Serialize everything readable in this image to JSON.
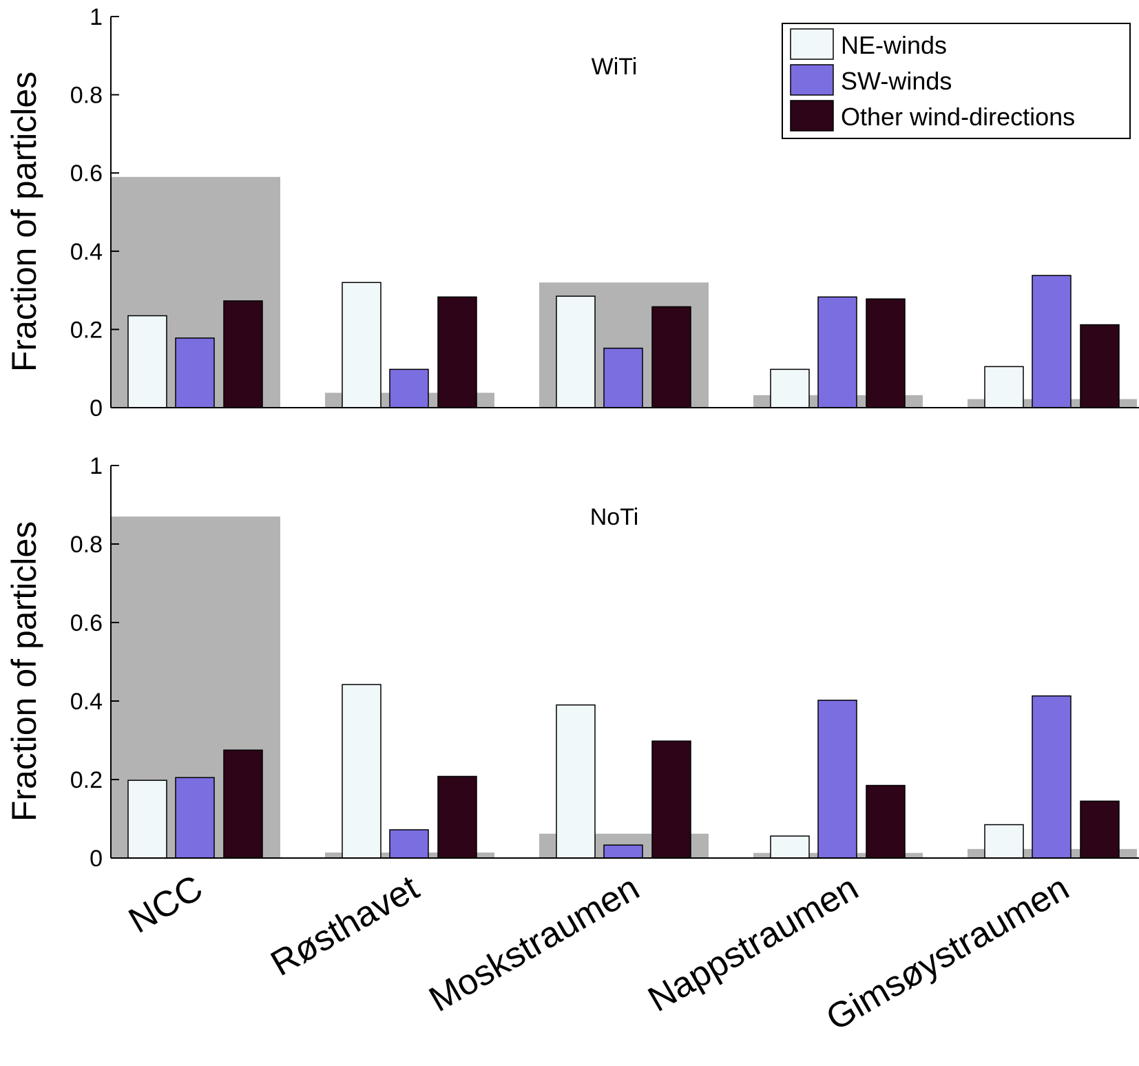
{
  "chart_data": [
    {
      "type": "bar",
      "title": "WiTi",
      "ylabel": "Fraction of particles",
      "xlabel": "",
      "ylim": [
        0,
        1
      ],
      "yticks": [
        "0",
        "0.2",
        "0.4",
        "0.6",
        "0.8",
        "1"
      ],
      "categories": [
        "NCC",
        "Røsthavet",
        "Moskstraumen",
        "Nappstraumen",
        "Gimsøystraumen"
      ],
      "background_values": [
        0.59,
        0.038,
        0.32,
        0.032,
        0.022
      ],
      "series": [
        {
          "name": "NE-winds",
          "values": [
            0.235,
            0.32,
            0.285,
            0.098,
            0.105
          ]
        },
        {
          "name": "SW-winds",
          "values": [
            0.178,
            0.098,
            0.152,
            0.283,
            0.338
          ]
        },
        {
          "name": "Other wind-directions",
          "values": [
            0.273,
            0.283,
            0.258,
            0.278,
            0.212
          ]
        }
      ]
    },
    {
      "type": "bar",
      "title": "NoTi",
      "ylabel": "Fraction of particles",
      "xlabel": "",
      "ylim": [
        0,
        1
      ],
      "yticks": [
        "0",
        "0.2",
        "0.4",
        "0.6",
        "0.8",
        "1"
      ],
      "categories": [
        "NCC",
        "Røsthavet",
        "Moskstraumen",
        "Nappstraumen",
        "Gimsøystraumen"
      ],
      "background_values": [
        0.87,
        0.014,
        0.062,
        0.013,
        0.023
      ],
      "series": [
        {
          "name": "NE-winds",
          "values": [
            0.198,
            0.442,
            0.39,
            0.056,
            0.085
          ]
        },
        {
          "name": "SW-winds",
          "values": [
            0.205,
            0.072,
            0.033,
            0.402,
            0.413
          ]
        },
        {
          "name": "Other wind-directions",
          "values": [
            0.275,
            0.208,
            0.298,
            0.185,
            0.145
          ]
        }
      ]
    }
  ],
  "legend": {
    "placement": "top-right",
    "entries": [
      {
        "label": "NE-winds",
        "color": "#f0f8fa"
      },
      {
        "label": "SW-winds",
        "color": "#7a6ee0"
      },
      {
        "label": "Other wind-directions",
        "color": "#2d0418"
      }
    ]
  },
  "colors": {
    "background_bar": "#b3b3b3",
    "NE-winds": "#f0f8fa",
    "SW-winds": "#7a6ee0",
    "Other wind-directions": "#2d0418",
    "axis": "#000000"
  }
}
